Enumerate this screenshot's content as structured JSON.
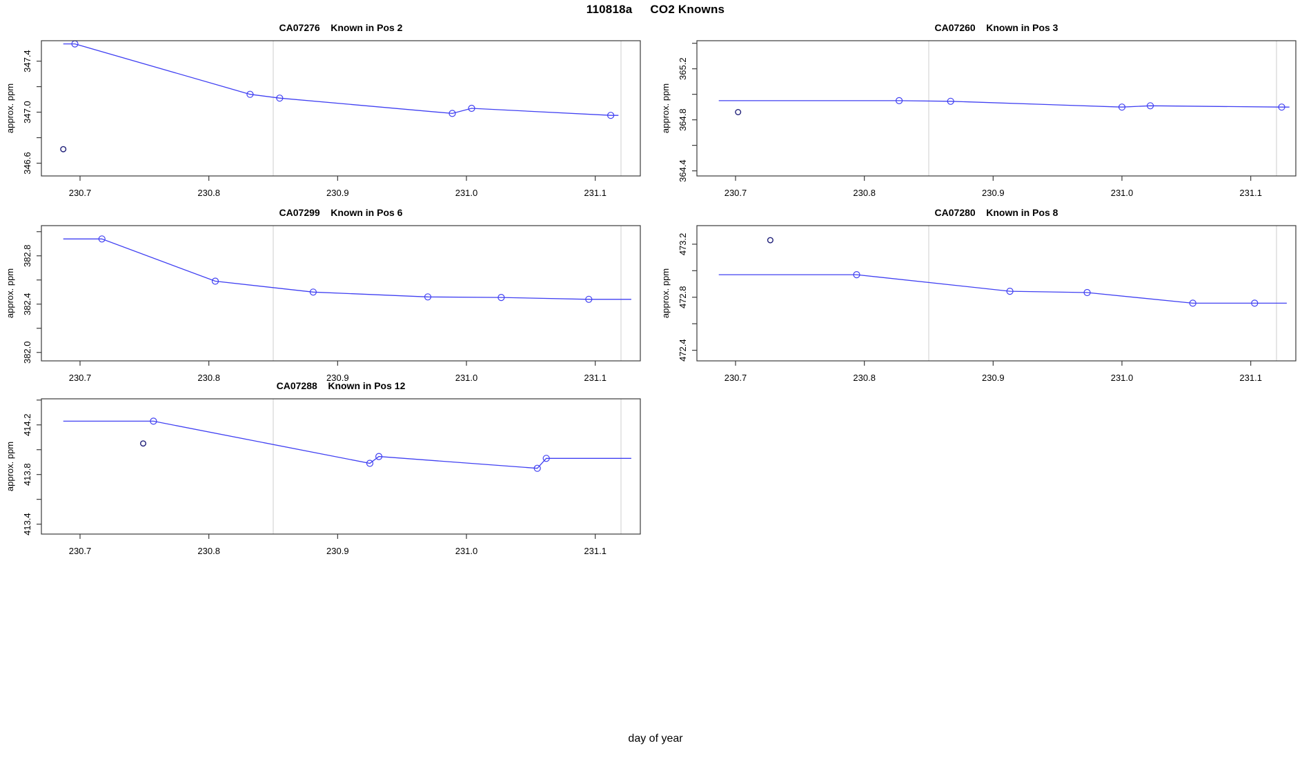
{
  "header": {
    "run_id": "110818a",
    "title": "CO2 Knowns"
  },
  "axes": {
    "xlabel": "day of year",
    "ylabel": "approx. ppm",
    "x_tick_labels": [
      "230.7",
      "230.8",
      "230.9",
      "231.0",
      "231.1"
    ]
  },
  "colors": {
    "line": "#3f3ff2",
    "marker": "#3f3ff2",
    "outlier": "#1e1e78",
    "guide": "#d6d6d6",
    "frame": "#3a3a3a",
    "text": "#000000",
    "background": "#ffffff"
  },
  "chart_data": [
    {
      "type": "line",
      "id": "CA07276",
      "pos_label": "Known in Pos 2",
      "row": 0,
      "col": 0,
      "xlim": [
        230.67,
        231.135
      ],
      "x_ticks": [
        230.7,
        230.8,
        230.9,
        231.0,
        231.1
      ],
      "guides_x": [
        230.85,
        231.12
      ],
      "ylim": [
        346.5,
        347.56
      ],
      "y_ticks": [
        {
          "v": 346.6,
          "t": "346.6"
        },
        {
          "v": 346.8,
          "t": ""
        },
        {
          "v": 347.0,
          "t": "347.0"
        },
        {
          "v": 347.2,
          "t": ""
        },
        {
          "v": 347.4,
          "t": "347.4"
        }
      ],
      "line": [
        [
          230.687,
          347.535
        ],
        [
          230.696,
          347.535
        ],
        [
          230.832,
          347.14
        ],
        [
          230.855,
          347.11
        ],
        [
          230.989,
          346.99
        ],
        [
          231.004,
          347.03
        ],
        [
          231.112,
          346.975
        ],
        [
          231.118,
          346.975
        ]
      ],
      "points": [
        [
          230.696,
          347.535
        ],
        [
          230.832,
          347.14
        ],
        [
          230.855,
          347.11
        ],
        [
          230.989,
          346.99
        ],
        [
          231.004,
          347.03
        ],
        [
          231.112,
          346.975
        ]
      ],
      "outliers": [
        [
          230.687,
          346.71
        ]
      ]
    },
    {
      "type": "line",
      "id": "CA07260",
      "pos_label": "Known in Pos 3",
      "row": 0,
      "col": 1,
      "xlim": [
        230.67,
        231.135
      ],
      "x_ticks": [
        230.7,
        230.8,
        230.9,
        231.0,
        231.1
      ],
      "guides_x": [
        230.85,
        231.12
      ],
      "ylim": [
        364.36,
        365.42
      ],
      "y_ticks": [
        {
          "v": 364.4,
          "t": "364.4"
        },
        {
          "v": 364.6,
          "t": ""
        },
        {
          "v": 364.8,
          "t": "364.8"
        },
        {
          "v": 365.0,
          "t": ""
        },
        {
          "v": 365.2,
          "t": "365.2"
        },
        {
          "v": 365.4,
          "t": ""
        }
      ],
      "line": [
        [
          230.687,
          364.95
        ],
        [
          230.827,
          364.95
        ],
        [
          230.867,
          364.945
        ],
        [
          231.0,
          364.9
        ],
        [
          231.022,
          364.91
        ],
        [
          231.124,
          364.9
        ],
        [
          231.13,
          364.9
        ]
      ],
      "points": [
        [
          230.827,
          364.95
        ],
        [
          230.867,
          364.945
        ],
        [
          231.0,
          364.9
        ],
        [
          231.022,
          364.91
        ],
        [
          231.124,
          364.9
        ]
      ],
      "outliers": [
        [
          230.702,
          364.86
        ]
      ]
    },
    {
      "type": "line",
      "id": "CA07299",
      "pos_label": "Known in Pos 6",
      "row": 1,
      "col": 0,
      "xlim": [
        230.67,
        231.135
      ],
      "x_ticks": [
        230.7,
        230.8,
        230.9,
        231.0,
        231.1
      ],
      "guides_x": [
        230.85,
        231.12
      ],
      "ylim": [
        381.93,
        383.05
      ],
      "y_ticks": [
        {
          "v": 382.0,
          "t": "382.0"
        },
        {
          "v": 382.2,
          "t": ""
        },
        {
          "v": 382.4,
          "t": "382.4"
        },
        {
          "v": 382.6,
          "t": ""
        },
        {
          "v": 382.8,
          "t": "382.8"
        },
        {
          "v": 383.0,
          "t": ""
        }
      ],
      "line": [
        [
          230.687,
          382.94
        ],
        [
          230.717,
          382.94
        ],
        [
          230.805,
          382.59
        ],
        [
          230.881,
          382.5
        ],
        [
          230.97,
          382.46
        ],
        [
          231.027,
          382.455
        ],
        [
          231.095,
          382.44
        ],
        [
          231.128,
          382.44
        ]
      ],
      "points": [
        [
          230.717,
          382.94
        ],
        [
          230.805,
          382.59
        ],
        [
          230.881,
          382.5
        ],
        [
          230.97,
          382.46
        ],
        [
          231.027,
          382.455
        ],
        [
          231.095,
          382.44
        ]
      ],
      "outliers": []
    },
    {
      "type": "line",
      "id": "CA07280",
      "pos_label": "Known in Pos 8",
      "row": 1,
      "col": 1,
      "xlim": [
        230.67,
        231.135
      ],
      "x_ticks": [
        230.7,
        230.8,
        230.9,
        231.0,
        231.1
      ],
      "guides_x": [
        230.85,
        231.12
      ],
      "ylim": [
        472.32,
        473.34
      ],
      "y_ticks": [
        {
          "v": 472.4,
          "t": "472.4"
        },
        {
          "v": 472.6,
          "t": ""
        },
        {
          "v": 472.8,
          "t": "472.8"
        },
        {
          "v": 473.0,
          "t": ""
        },
        {
          "v": 473.2,
          "t": "473.2"
        }
      ],
      "line": [
        [
          230.687,
          472.97
        ],
        [
          230.794,
          472.97
        ],
        [
          230.913,
          472.845
        ],
        [
          230.973,
          472.835
        ],
        [
          231.055,
          472.755
        ],
        [
          231.103,
          472.755
        ],
        [
          231.128,
          472.755
        ]
      ],
      "points": [
        [
          230.794,
          472.97
        ],
        [
          230.913,
          472.845
        ],
        [
          230.973,
          472.835
        ],
        [
          231.055,
          472.755
        ],
        [
          231.103,
          472.755
        ]
      ],
      "outliers": [
        [
          230.727,
          473.23
        ]
      ]
    },
    {
      "type": "line",
      "id": "CA07288",
      "pos_label": "Known in Pos 12",
      "row": 2,
      "col": 0,
      "xlim": [
        230.67,
        231.135
      ],
      "x_ticks": [
        230.7,
        230.8,
        230.9,
        231.0,
        231.1
      ],
      "guides_x": [
        230.85,
        231.12
      ],
      "ylim": [
        413.32,
        414.41
      ],
      "y_ticks": [
        {
          "v": 413.4,
          "t": "413.4"
        },
        {
          "v": 413.6,
          "t": ""
        },
        {
          "v": 413.8,
          "t": "413.8"
        },
        {
          "v": 414.0,
          "t": ""
        },
        {
          "v": 414.2,
          "t": "414.2"
        },
        {
          "v": 414.4,
          "t": ""
        }
      ],
      "line": [
        [
          230.687,
          414.23
        ],
        [
          230.757,
          414.23
        ],
        [
          230.925,
          413.89
        ],
        [
          230.932,
          413.945
        ],
        [
          231.055,
          413.85
        ],
        [
          231.062,
          413.93
        ],
        [
          231.128,
          413.93
        ]
      ],
      "points": [
        [
          230.757,
          414.23
        ],
        [
          230.925,
          413.89
        ],
        [
          230.932,
          413.945
        ],
        [
          231.055,
          413.85
        ],
        [
          231.062,
          413.93
        ]
      ],
      "outliers": [
        [
          230.749,
          414.05
        ]
      ]
    }
  ]
}
